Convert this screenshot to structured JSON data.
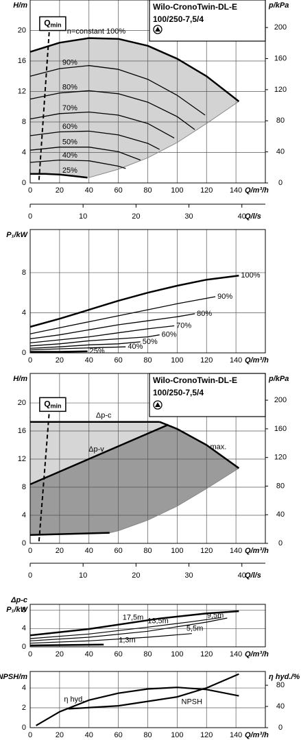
{
  "chart_data": [
    {
      "type": "line",
      "title_lines": [
        "Wilo-CronoTwin-DL-E",
        "100/250-7,5/4"
      ],
      "y_label": "H/m",
      "y2_label": "p/kPa",
      "x_label": "Q/m³/h",
      "x2_label": "Q/l/s",
      "xlim": [
        0,
        160
      ],
      "xticks": [
        0,
        20,
        40,
        60,
        80,
        100,
        120,
        140
      ],
      "x2lim": [
        0,
        44.44
      ],
      "x2ticks": [
        0,
        10,
        20,
        30,
        40
      ],
      "ylim": [
        0,
        24
      ],
      "yticks": [
        0,
        4,
        8,
        12,
        16,
        20
      ],
      "y2lim": [
        0,
        235.4
      ],
      "y2ticks": [
        0,
        40,
        80,
        120,
        160,
        200
      ],
      "grid": true,
      "region_fill": "#d3d3d3",
      "limit_line": {
        "x": [
          40,
          60,
          80,
          100,
          120,
          142
        ],
        "values": [
          0.7,
          1.8,
          3.3,
          5.3,
          7.8,
          10.7
        ]
      },
      "qmin": {
        "label_main": "Q",
        "label_sub": "min",
        "x": [
          6,
          13
        ],
        "values": [
          0.4,
          20
        ]
      },
      "series": [
        {
          "name": "n=constant 100%",
          "color": "#000000",
          "width": 2.5,
          "x": [
            0,
            20,
            40,
            60,
            80,
            100,
            120,
            142
          ],
          "values": [
            17.2,
            18.4,
            19.0,
            18.9,
            18.0,
            16.3,
            14.0,
            10.7
          ]
        },
        {
          "name": "90%",
          "color": "#000000",
          "width": 1.3,
          "x": [
            0,
            20,
            40,
            60,
            80,
            100,
            119
          ],
          "values": [
            14.0,
            15.0,
            15.4,
            14.9,
            13.6,
            11.5,
            8.9
          ]
        },
        {
          "name": "80%",
          "color": "#000000",
          "width": 1.3,
          "x": [
            0,
            20,
            40,
            60,
            80,
            100,
            112
          ],
          "values": [
            11.0,
            11.8,
            12.1,
            11.7,
            10.6,
            8.7,
            7.0
          ]
        },
        {
          "name": "70%",
          "color": "#000000",
          "width": 1.3,
          "x": [
            0,
            20,
            40,
            60,
            80,
            98
          ],
          "values": [
            8.4,
            9.1,
            9.3,
            8.9,
            7.8,
            5.9
          ]
        },
        {
          "name": "60%",
          "color": "#000000",
          "width": 1.3,
          "x": [
            0,
            20,
            40,
            60,
            80,
            88
          ],
          "values": [
            6.2,
            6.7,
            6.8,
            6.3,
            5.2,
            4.4
          ]
        },
        {
          "name": "50%",
          "color": "#000000",
          "width": 1.3,
          "x": [
            0,
            20,
            40,
            60,
            75
          ],
          "values": [
            4.3,
            4.7,
            4.7,
            4.1,
            3.0
          ]
        },
        {
          "name": "40%",
          "color": "#000000",
          "width": 1.3,
          "x": [
            0,
            20,
            40,
            60,
            65
          ],
          "values": [
            2.7,
            3.0,
            2.9,
            2.2,
            1.9
          ]
        },
        {
          "name": "25%",
          "color": "#000000",
          "width": 2.5,
          "x": [
            0,
            10,
            20,
            30,
            39
          ],
          "values": [
            1.2,
            1.2,
            1.1,
            0.9,
            0.7
          ]
        }
      ]
    },
    {
      "type": "line",
      "y_label": "P₁/kW",
      "x_label": "Q/m³/h",
      "xlim": [
        0,
        160
      ],
      "xticks": [
        0,
        20,
        40,
        60,
        80,
        100,
        120,
        140
      ],
      "ylim": [
        0,
        12.3
      ],
      "yticks": [
        0,
        4,
        8
      ],
      "grid": true,
      "series": [
        {
          "name": "100%",
          "color": "#000000",
          "width": 2.5,
          "x": [
            0,
            20,
            40,
            60,
            80,
            100,
            120,
            142
          ],
          "values": [
            2.6,
            3.4,
            4.3,
            5.2,
            6.0,
            6.7,
            7.3,
            7.7
          ]
        },
        {
          "name": "90%",
          "color": "#000000",
          "width": 1.3,
          "x": [
            0,
            20,
            40,
            60,
            80,
            100,
            126
          ],
          "values": [
            1.9,
            2.5,
            3.1,
            3.7,
            4.3,
            4.9,
            5.6
          ]
        },
        {
          "name": "80%",
          "color": "#000000",
          "width": 1.3,
          "x": [
            0,
            20,
            40,
            60,
            80,
            100,
            112
          ],
          "values": [
            1.4,
            1.8,
            2.3,
            2.8,
            3.2,
            3.6,
            3.9
          ]
        },
        {
          "name": "70%",
          "color": "#000000",
          "width": 1.3,
          "x": [
            0,
            20,
            40,
            60,
            80,
            98
          ],
          "values": [
            1.0,
            1.3,
            1.6,
            2.0,
            2.4,
            2.7
          ]
        },
        {
          "name": "60%",
          "color": "#000000",
          "width": 1.3,
          "x": [
            0,
            20,
            40,
            60,
            80,
            88
          ],
          "values": [
            0.7,
            0.9,
            1.2,
            1.4,
            1.6,
            1.8
          ]
        },
        {
          "name": "50%",
          "color": "#000000",
          "width": 1.3,
          "x": [
            0,
            20,
            40,
            60,
            75
          ],
          "values": [
            0.45,
            0.6,
            0.8,
            0.9,
            1.1
          ]
        },
        {
          "name": "40%",
          "color": "#000000",
          "width": 1.3,
          "x": [
            0,
            20,
            40,
            65
          ],
          "values": [
            0.3,
            0.4,
            0.5,
            0.6
          ]
        },
        {
          "name": "25%",
          "color": "#000000",
          "width": 2.5,
          "x": [
            0,
            20,
            39
          ],
          "values": [
            0.1,
            0.1,
            0.15
          ]
        }
      ]
    },
    {
      "type": "line",
      "title_lines": [
        "Wilo-CronoTwin-DL-E",
        "100/250-7,5/4"
      ],
      "y_label": "H/m",
      "y2_label": "p/kPa",
      "x_label": "Q/m³/h",
      "x2_label": "Q/l/s",
      "xlim": [
        0,
        160
      ],
      "xticks": [
        0,
        20,
        40,
        60,
        80,
        100,
        120,
        140
      ],
      "x2lim": [
        0,
        44.44
      ],
      "x2ticks": [
        0,
        10,
        20,
        30,
        40
      ],
      "ylim": [
        0,
        24.2
      ],
      "yticks": [
        0,
        4,
        8,
        12,
        16,
        20
      ],
      "y2lim": [
        0,
        237.4
      ],
      "y2ticks": [
        0,
        40,
        80,
        120,
        160,
        200
      ],
      "grid": true,
      "region_fill": "#d6d6d6",
      "region_fill_2": "#9b9b9b",
      "limit_line": {
        "x": [
          54,
          60,
          80,
          100,
          120,
          142
        ],
        "values": [
          1.5,
          1.8,
          3.3,
          5.3,
          7.8,
          10.7
        ]
      },
      "min_line": {
        "x": [
          0,
          54
        ],
        "values": [
          1.2,
          1.5
        ]
      },
      "qmin": {
        "label_main": "Q",
        "label_sub": "min",
        "x": [
          6,
          13
        ],
        "values": [
          0.3,
          18.8
        ]
      },
      "series": [
        {
          "name": "Δp-c",
          "color": "#000000",
          "width": 2.5,
          "x": [
            0,
            88
          ],
          "values": [
            17.3,
            17.3
          ]
        },
        {
          "name": "Δp-v",
          "color": "#000000",
          "width": 2.5,
          "x": [
            0,
            94
          ],
          "values": [
            8.4,
            16.9
          ]
        },
        {
          "name": "max.",
          "color": "#000000",
          "width": 2.5,
          "x": [
            88,
            100,
            120,
            142
          ],
          "values": [
            17.3,
            16.3,
            14.0,
            10.7
          ]
        }
      ]
    },
    {
      "type": "line",
      "y_label": [
        "Δp-c",
        "P₁/kW"
      ],
      "x_label": "Q/m³/h",
      "xlim": [
        0,
        160
      ],
      "xticks": [
        0,
        20,
        40,
        60,
        80,
        100,
        120,
        140
      ],
      "ylim": [
        0,
        9.3
      ],
      "yticks": [
        0,
        4,
        8
      ],
      "grid": true,
      "series": [
        {
          "name": "17,5m",
          "color": "#000000",
          "width": 2.5,
          "x": [
            0,
            40,
            88,
            120,
            142
          ],
          "values": [
            2.5,
            3.9,
            6.2,
            7.3,
            7.8
          ]
        },
        {
          "name": "13,5m",
          "color": "#000000",
          "width": 1.2,
          "x": [
            0,
            40,
            80,
            110,
            130
          ],
          "values": [
            1.8,
            2.8,
            4.3,
            5.5,
            6.4
          ]
        },
        {
          "name": "9,5m",
          "color": "#000000",
          "width": 1.2,
          "x": [
            0,
            40,
            80,
            120,
            134
          ],
          "values": [
            1.3,
            2.1,
            3.4,
            5.4,
            6.3
          ]
        },
        {
          "name": "5,5m",
          "color": "#000000",
          "width": 1.2,
          "x": [
            0,
            40,
            80,
            110
          ],
          "values": [
            0.8,
            1.3,
            2.1,
            2.9
          ]
        },
        {
          "name": "1,3m",
          "color": "#000000",
          "width": 2.5,
          "x": [
            0,
            50
          ],
          "values": [
            0.3,
            0.5
          ]
        }
      ]
    },
    {
      "type": "line",
      "y_label": "NPSH/m",
      "y2_label": "η hyd./%",
      "x_label": "Q/m³/h",
      "xlim": [
        0,
        160
      ],
      "xticks": [
        0,
        20,
        40,
        60,
        80,
        100,
        120,
        140
      ],
      "ylim": [
        0,
        5.66
      ],
      "yticks": [
        0,
        2,
        4
      ],
      "y2lim": [
        0,
        106
      ],
      "y2ticks": [
        0,
        40,
        80
      ],
      "grid": true,
      "series": [
        {
          "name": "η hyd.",
          "color": "#000000",
          "width": 2.2,
          "axis": "y2",
          "x": [
            4,
            20,
            40,
            60,
            80,
            100,
            120,
            142
          ],
          "values": [
            4,
            30,
            52,
            65,
            73,
            76,
            72,
            60
          ]
        },
        {
          "name": "NPSH",
          "color": "#000000",
          "width": 2.2,
          "x": [
            26,
            60,
            100,
            120,
            142
          ],
          "values": [
            1.9,
            2.2,
            3.1,
            4.0,
            5.4
          ]
        }
      ]
    }
  ]
}
